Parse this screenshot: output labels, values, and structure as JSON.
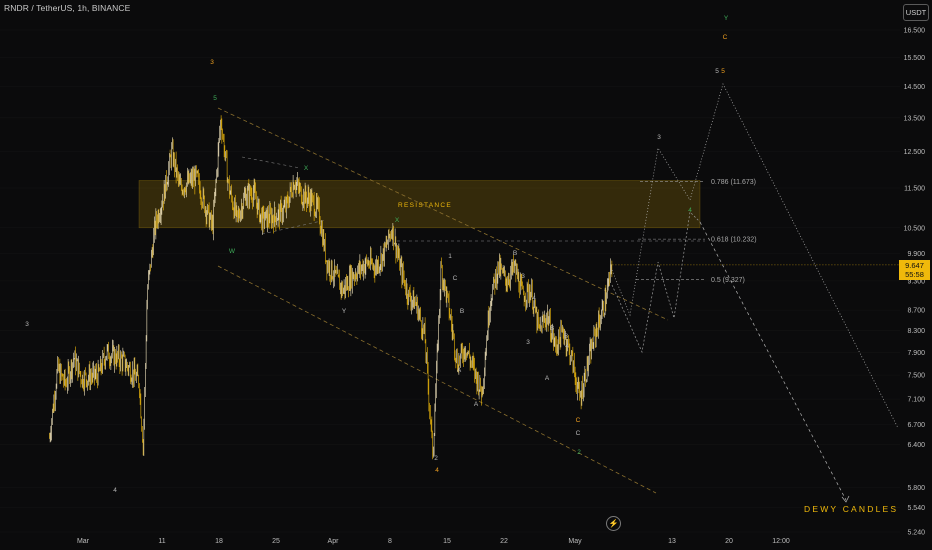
{
  "header": {
    "symbol": "RNDR / TetherUS, 1h, BINANCE",
    "currency": "USDT"
  },
  "price_badge": {
    "price": "9.647",
    "countdown": "55:58"
  },
  "watermark": "DEWY CANDLES",
  "colors": {
    "background": "#0b0b0c",
    "candle": "#f0b90b",
    "candle_up": "#f5e8c0",
    "zone": "#f0b90b",
    "fib": "#9a9a9a",
    "wave_orange": "#f0a020",
    "wave_green": "#3fae5a",
    "wave_grey": "#b8b8b8",
    "channel": "#8a6f2e"
  },
  "icons": {
    "goto_realtime": "lightning-icon"
  },
  "chart_data": {
    "type": "candlestick",
    "y_axis": {
      "scale": "log",
      "ylim": [
        5.24,
        17.1
      ],
      "ticks": [
        16.5,
        15.5,
        14.5,
        13.5,
        12.5,
        11.5,
        10.5,
        9.9,
        9.3,
        8.7,
        8.3,
        7.9,
        7.5,
        7.1,
        6.7,
        6.4,
        5.8,
        5.54,
        5.24
      ],
      "tick_labels": [
        "16.500",
        "15.500",
        "14.500",
        "13.500",
        "12.500",
        "11.500",
        "10.500",
        "9.900",
        "9.300",
        "8.700",
        "8.300",
        "7.900",
        "7.500",
        "7.100",
        "6.700",
        "6.400",
        "5.800",
        "5.540",
        "5.240"
      ]
    },
    "x_axis": {
      "ticks": [
        "Mar",
        "11",
        "18",
        "25",
        "Apr",
        "8",
        "15",
        "22",
        "May",
        "13",
        "20",
        "12:00"
      ]
    },
    "price_path": [
      [
        "Feb 26",
        6.5
      ],
      [
        "Feb 27",
        7.6
      ],
      [
        "Feb 28",
        7.35
      ],
      [
        "Feb 29",
        7.8
      ],
      [
        "Mar 1",
        7.45
      ],
      [
        "Mar 3",
        7.5
      ],
      [
        "Mar 4",
        7.9
      ],
      [
        "Mar 6",
        7.75
      ],
      [
        "Mar 8",
        7.4
      ],
      [
        "Mar 8 12:00",
        6.35
      ],
      [
        "Mar 9",
        9.1
      ],
      [
        "Mar 10",
        10.6
      ],
      [
        "Mar 11",
        11.3
      ],
      [
        "Mar 12",
        12.5
      ],
      [
        "Mar 13",
        11.5
      ],
      [
        "Mar 15",
        11.8
      ],
      [
        "Mar 16",
        11.1
      ],
      [
        "Mar 17",
        10.5
      ],
      [
        "Mar 18",
        13.5
      ],
      [
        "Mar 19",
        11.5
      ],
      [
        "Mar 20",
        10.7
      ],
      [
        "Mar 21",
        11.3
      ],
      [
        "Mar 22",
        11.4
      ],
      [
        "Mar 23",
        10.7
      ],
      [
        "Mar 25",
        10.8
      ],
      [
        "Mar 26",
        11.0
      ],
      [
        "Mar 27",
        11.7
      ],
      [
        "Mar 28",
        11.3
      ],
      [
        "Mar 29",
        11.2
      ],
      [
        "Mar 30",
        10.9
      ],
      [
        "Mar 31",
        9.7
      ],
      [
        "Apr 1",
        9.4
      ],
      [
        "Apr 2",
        9.1
      ],
      [
        "Apr 3",
        9.4
      ],
      [
        "Apr 5",
        9.7
      ],
      [
        "Apr 6",
        9.6
      ],
      [
        "Apr 7",
        9.9
      ],
      [
        "Apr 8",
        10.5
      ],
      [
        "Apr 9",
        9.6
      ],
      [
        "Apr 10",
        9.0
      ],
      [
        "Apr 11",
        8.8
      ],
      [
        "Apr 12",
        8.2
      ],
      [
        "Apr 13",
        6.25
      ],
      [
        "Apr 14",
        9.6
      ],
      [
        "Apr 15",
        8.7
      ],
      [
        "Apr 16",
        7.7
      ],
      [
        "Apr 17",
        8.0
      ],
      [
        "Apr 18",
        7.6
      ],
      [
        "Apr 19",
        7.2
      ],
      [
        "Apr 20",
        8.9
      ],
      [
        "Apr 21",
        9.6
      ],
      [
        "Apr 22",
        9.3
      ],
      [
        "Apr 23",
        9.6
      ],
      [
        "Apr 24",
        9.0
      ],
      [
        "Apr 25",
        9.1
      ],
      [
        "Apr 26",
        8.3
      ],
      [
        "Apr 27",
        8.6
      ],
      [
        "Apr 28",
        8.0
      ],
      [
        "Apr 29",
        8.3
      ],
      [
        "Apr 30",
        7.8
      ],
      [
        "May 1",
        7.1
      ],
      [
        "May 2",
        7.7
      ],
      [
        "May 3",
        8.3
      ],
      [
        "May 4",
        8.8
      ],
      [
        "May 5",
        9.647
      ]
    ],
    "resistance_zone": {
      "label": "RESISTANCE",
      "from": 10.5,
      "to": 11.7
    },
    "fib_levels": [
      {
        "label": "0.786 (11.673)",
        "value": 11.673
      },
      {
        "label": "0.618 (10.232)",
        "value": 10.232
      },
      {
        "label": "0.5 (9.327)",
        "value": 9.327
      }
    ],
    "wave_labels": [
      "3",
      "5",
      "3",
      "4",
      "4",
      "5",
      "C",
      "Y",
      "X",
      "W",
      "X",
      "Y",
      "1",
      "B",
      "A",
      "2",
      "B",
      "4",
      "A",
      "C",
      "3",
      "B",
      "3",
      "A",
      "4",
      "C",
      "2",
      "3",
      "4",
      "C",
      "B",
      "5"
    ]
  }
}
